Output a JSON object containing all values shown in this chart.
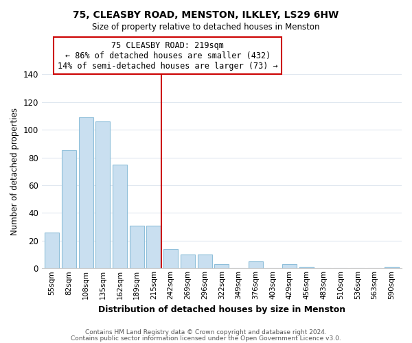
{
  "title": "75, CLEASBY ROAD, MENSTON, ILKLEY, LS29 6HW",
  "subtitle": "Size of property relative to detached houses in Menston",
  "xlabel": "Distribution of detached houses by size in Menston",
  "ylabel": "Number of detached properties",
  "bar_labels": [
    "55sqm",
    "82sqm",
    "108sqm",
    "135sqm",
    "162sqm",
    "189sqm",
    "215sqm",
    "242sqm",
    "269sqm",
    "296sqm",
    "322sqm",
    "349sqm",
    "376sqm",
    "403sqm",
    "429sqm",
    "456sqm",
    "483sqm",
    "510sqm",
    "536sqm",
    "563sqm",
    "590sqm"
  ],
  "bar_values": [
    26,
    85,
    109,
    106,
    75,
    31,
    31,
    14,
    10,
    10,
    3,
    0,
    5,
    0,
    3,
    1,
    0,
    0,
    0,
    0,
    1
  ],
  "bar_color": "#c9dff0",
  "bar_edge_color": "#8fbfda",
  "annotation_line1": "75 CLEASBY ROAD: 219sqm",
  "annotation_line2": "← 86% of detached houses are smaller (432)",
  "annotation_line3": "14% of semi-detached houses are larger (73) →",
  "annotation_box_edge_color": "#cc0000",
  "vline_color": "#cc0000",
  "ylim": [
    0,
    140
  ],
  "yticks": [
    0,
    20,
    40,
    60,
    80,
    100,
    120,
    140
  ],
  "footer1": "Contains HM Land Registry data © Crown copyright and database right 2024.",
  "footer2": "Contains public sector information licensed under the Open Government Licence v3.0.",
  "bg_color": "#ffffff",
  "plot_bg_color": "#ffffff",
  "grid_color": "#e0e8f0"
}
